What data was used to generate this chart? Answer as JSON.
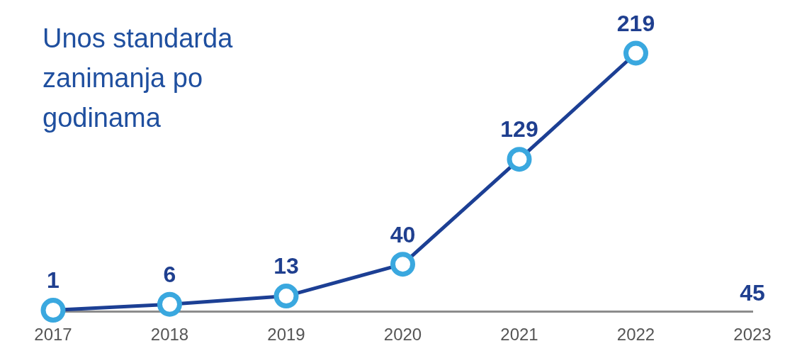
{
  "chart_data": {
    "type": "line",
    "title": "Unos standarda zanimanja po godinama",
    "categories": [
      "2017",
      "2018",
      "2019",
      "2020",
      "2021",
      "2022",
      "2023"
    ],
    "series": [
      {
        "color": "#1c3f94",
        "values": [
          1,
          6,
          13,
          40,
          129,
          219,
          null
        ]
      }
    ],
    "marker": "circle",
    "data_labels": true,
    "grid": false,
    "legend": false,
    "tick_labels": "x",
    "annotations": [
      "45"
    ]
  }
}
